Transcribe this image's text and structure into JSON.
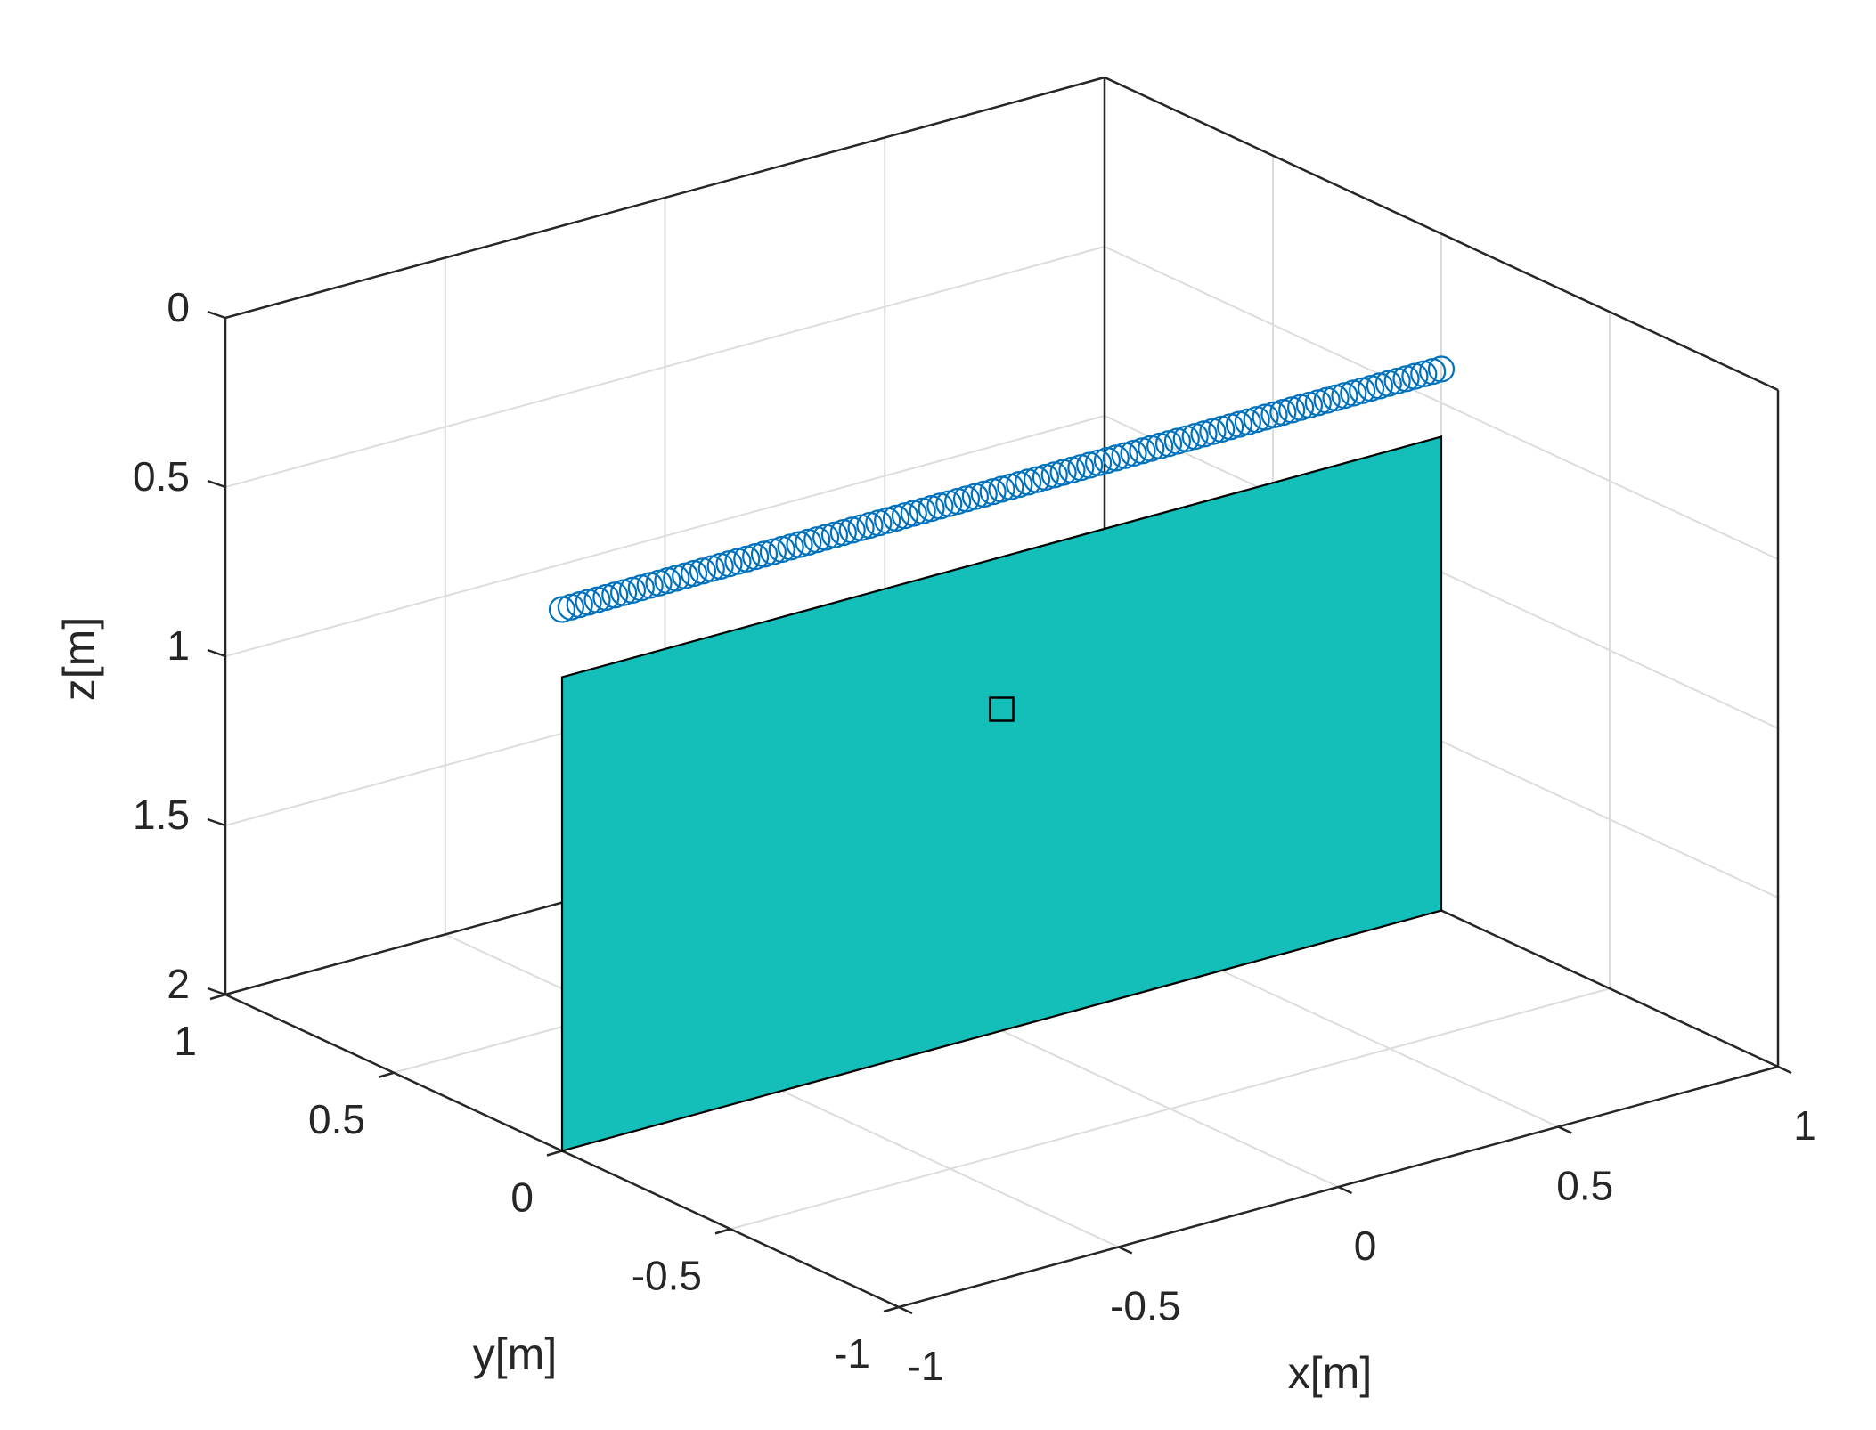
{
  "chart_data": {
    "type": "scatter",
    "projection": "3d",
    "title": "",
    "xlabel": "x[m]",
    "ylabel": "y[m]",
    "zlabel": "z[m]",
    "xlim": [
      -1,
      1
    ],
    "ylim": [
      -1,
      1
    ],
    "zlim": [
      0,
      2
    ],
    "z_direction": "reverse",
    "grid": true,
    "x_ticks": [
      "-1",
      "-0.5",
      "0",
      "0.5",
      "1"
    ],
    "y_ticks": [
      "-1",
      "-0.5",
      "0",
      "0.5",
      "1"
    ],
    "z_ticks": [
      "0",
      "0.5",
      "1",
      "1.5",
      "2"
    ],
    "x_tick_values": [
      -1,
      -0.5,
      0,
      0.5,
      1
    ],
    "y_tick_values": [
      -1,
      -0.5,
      0,
      0.5,
      1
    ],
    "z_tick_values": [
      0,
      0.5,
      1,
      1.5,
      2
    ],
    "circle_markers": {
      "color": "#0072BD",
      "marker": "circle",
      "x_start": -1,
      "x_end": 1,
      "count": 101,
      "y": 0,
      "z": 0.4
    },
    "plane": {
      "color": "#14BEB9",
      "edge_color": "#000000",
      "x_range": [
        -1,
        1
      ],
      "y": 0,
      "z_range": [
        0.6,
        2
      ]
    },
    "square_marker": {
      "marker": "square",
      "color": "#000000",
      "x": 0,
      "y": 0,
      "z": 1.05
    }
  }
}
